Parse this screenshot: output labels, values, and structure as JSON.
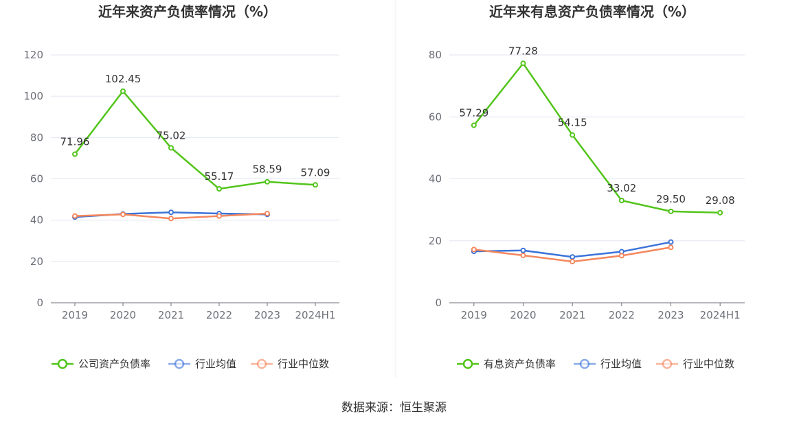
{
  "source": "数据来源：恒生聚源",
  "chart_data": [
    {
      "type": "line",
      "title": "近年来资产负债率情况（%）",
      "categories": [
        "2019",
        "2020",
        "2021",
        "2022",
        "2023",
        "2024H1"
      ],
      "y_ticks": [
        "0",
        "20",
        "40",
        "60",
        "80",
        "100",
        "120"
      ],
      "ylim": [
        0,
        120
      ],
      "grid": true,
      "legend_position": "bottom",
      "series": [
        {
          "name": "公司资产负债率",
          "color": "#52c41a",
          "values": [
            71.96,
            102.45,
            75.02,
            55.17,
            58.59,
            57.09
          ],
          "labels": [
            "71.96",
            "102.45",
            "75.02",
            "55.17",
            "58.59",
            "57.09"
          ]
        },
        {
          "name": "行业均值",
          "color": "#3b73d9",
          "values": [
            41.5,
            43.0,
            43.8,
            43.2,
            42.8,
            null
          ]
        },
        {
          "name": "行业中位数",
          "color": "#f4875d",
          "values": [
            42.0,
            42.8,
            40.8,
            42.0,
            43.2,
            null
          ]
        }
      ]
    },
    {
      "type": "line",
      "title": "近年来有息资产负债率情况（%）",
      "categories": [
        "2019",
        "2020",
        "2021",
        "2022",
        "2023",
        "2024H1"
      ],
      "y_ticks": [
        "0",
        "20",
        "40",
        "60",
        "80"
      ],
      "ylim": [
        0,
        80
      ],
      "grid": true,
      "legend_position": "bottom",
      "series": [
        {
          "name": "有息资产负债率",
          "color": "#52c41a",
          "values": [
            57.29,
            77.28,
            54.15,
            33.02,
            29.5,
            29.08
          ],
          "labels": [
            "57.29",
            "77.28",
            "54.15",
            "33.02",
            "29.50",
            "29.08"
          ]
        },
        {
          "name": "行业均值",
          "color": "#3b73d9",
          "values": [
            16.6,
            16.9,
            14.8,
            16.5,
            19.6,
            null
          ]
        },
        {
          "name": "行业中位数",
          "color": "#f4875d",
          "values": [
            17.2,
            15.3,
            13.3,
            15.2,
            17.9,
            null
          ]
        }
      ]
    }
  ]
}
